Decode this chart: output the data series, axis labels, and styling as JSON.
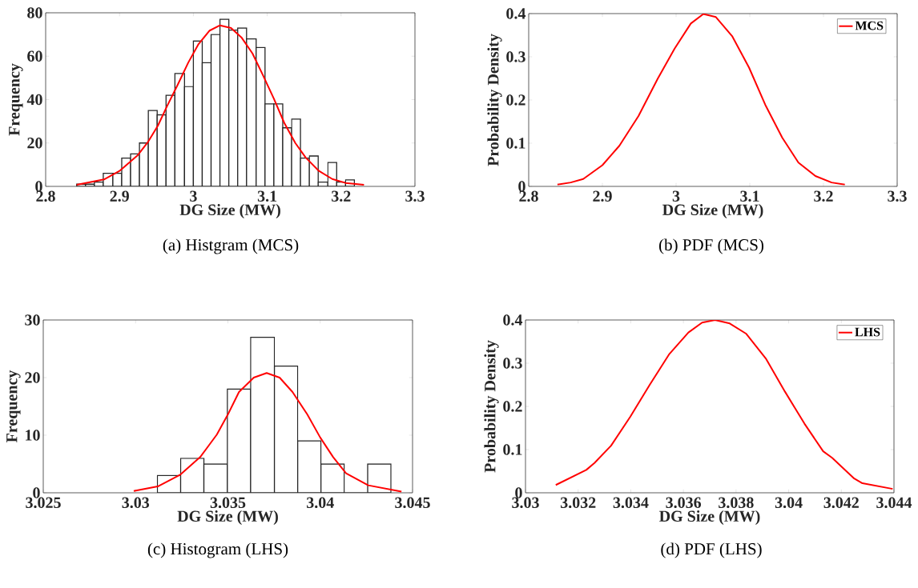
{
  "chart_data": [
    {
      "type": "histogram",
      "title": "(a)  Histgram (MCS)",
      "xlabel": "DG Size (MW)",
      "ylabel": "Frequency",
      "color": "#ffffff",
      "bins": [
        2.842,
        2.854,
        2.866,
        2.878,
        2.891,
        2.903,
        2.915,
        2.927,
        2.939,
        2.951,
        2.963,
        2.975,
        2.988,
        3.0,
        3.012,
        3.024,
        3.036,
        3.048,
        3.06,
        3.072,
        3.085,
        3.097,
        3.109,
        3.121,
        3.133,
        3.145,
        3.157,
        3.169,
        3.182,
        3.194,
        3.206,
        3.218
      ],
      "values": [
        1,
        1,
        2,
        6,
        6,
        13,
        15,
        20,
        35,
        33,
        42,
        52,
        46,
        67,
        57,
        70,
        77,
        72,
        73,
        68,
        64,
        38,
        38,
        27,
        31,
        13,
        14,
        2,
        11,
        2,
        3
      ],
      "series": [
        {
          "type": "line",
          "color": "#ff0000",
          "x": [
            2.842,
            2.879,
            2.9,
            2.925,
            2.939,
            2.952,
            2.964,
            2.979,
            2.993,
            3.007,
            3.022,
            3.036,
            3.051,
            3.065,
            3.08,
            3.094,
            3.109,
            3.123,
            3.138,
            3.152,
            3.17,
            3.188,
            3.206,
            3.231
          ],
          "values": [
            0.7,
            3.2,
            7.1,
            14.5,
            20.7,
            28,
            36.7,
            47,
            57,
            65.6,
            71.8,
            74.2,
            73,
            68.7,
            61.3,
            51.4,
            40.4,
            29.3,
            20,
            13.3,
            7.1,
            3.4,
            1.6,
            0.7
          ]
        }
      ],
      "xlim": [
        2.8,
        3.3
      ],
      "xticks": [
        2.8,
        2.9,
        3,
        3.1,
        3.2,
        3.3
      ],
      "ylim": [
        0,
        80
      ],
      "yticks": [
        0,
        20,
        40,
        60,
        80
      ]
    },
    {
      "type": "line",
      "title": "(b)  PDF (MCS)",
      "xlabel": "DG Size (MW)",
      "ylabel": "Probability Density",
      "legend": "top right",
      "series": [
        {
          "name": "MCS",
          "color": "#ff0000",
          "x": [
            2.839,
            2.857,
            2.874,
            2.9,
            2.923,
            2.949,
            2.975,
            2.998,
            3.02,
            3.037,
            3.054,
            3.076,
            3.099,
            3.121,
            3.144,
            3.166,
            3.189,
            3.211,
            3.229
          ],
          "values": [
            0.004,
            0.009,
            0.017,
            0.049,
            0.094,
            0.163,
            0.249,
            0.319,
            0.377,
            0.399,
            0.392,
            0.348,
            0.275,
            0.189,
            0.113,
            0.055,
            0.024,
            0.009,
            0.004
          ]
        }
      ],
      "xlim": [
        2.8,
        3.3
      ],
      "xticks": [
        2.8,
        2.9,
        3,
        3.1,
        3.2,
        3.3
      ],
      "ylim": [
        0,
        0.4
      ],
      "yticks": [
        0,
        0.1,
        0.2,
        0.3,
        0.4
      ]
    },
    {
      "type": "histogram",
      "title": "(c) Histogram (LHS)",
      "xlabel": "DG Size (MW)",
      "ylabel": "Frequency",
      "color": "#ffffff",
      "bins": [
        3.03118,
        3.03244,
        3.0337,
        3.03497,
        3.03623,
        3.03752,
        3.03878,
        3.04004,
        3.0413,
        3.04257,
        3.04383
      ],
      "values": [
        3,
        6,
        5,
        18,
        27,
        22,
        9,
        5,
        0,
        5
      ],
      "series": [
        {
          "type": "line",
          "color": "#ff0000",
          "x": [
            3.0299,
            3.0312,
            3.0324,
            3.0335,
            3.0344,
            3.035,
            3.0356,
            3.0364,
            3.0371,
            3.0378,
            3.0385,
            3.0393,
            3.04,
            3.0407,
            3.0414,
            3.0426,
            3.0444
          ],
          "values": [
            0.3,
            1.1,
            3.1,
            6.2,
            10.1,
            13.6,
            17.5,
            20,
            20.8,
            20,
            17.5,
            13.6,
            9.6,
            6.2,
            3.4,
            1.3,
            0.2
          ]
        }
      ],
      "xlim": [
        3.025,
        3.045
      ],
      "xticks": [
        3.025,
        3.03,
        3.035,
        3.04,
        3.045
      ],
      "ylim": [
        0,
        30
      ],
      "yticks": [
        0,
        10,
        20,
        30
      ]
    },
    {
      "type": "line",
      "title": "(d) PDF (LHS)",
      "xlabel": "DG Size (MW)",
      "ylabel": "Probability Density",
      "legend": "top right",
      "series": [
        {
          "name": "LHS",
          "color": "#ff0000",
          "x": [
            3.03115,
            3.03231,
            3.03262,
            3.03325,
            3.03398,
            3.03472,
            3.03545,
            3.03619,
            3.03671,
            3.0372,
            3.03776,
            3.03839,
            3.03913,
            3.03986,
            3.0406,
            3.04131,
            3.04165,
            3.04249,
            3.0428,
            3.04395
          ],
          "values": [
            0.018,
            0.053,
            0.069,
            0.109,
            0.176,
            0.25,
            0.32,
            0.371,
            0.394,
            0.4,
            0.392,
            0.368,
            0.311,
            0.234,
            0.16,
            0.096,
            0.081,
            0.033,
            0.022,
            0.009
          ]
        }
      ],
      "xlim": [
        3.03,
        3.044
      ],
      "xticks": [
        3.03,
        3.032,
        3.034,
        3.036,
        3.038,
        3.04,
        3.042,
        3.044
      ],
      "ylim": [
        0,
        0.4
      ],
      "yticks": [
        0,
        0.1,
        0.2,
        0.3,
        0.4
      ]
    }
  ]
}
